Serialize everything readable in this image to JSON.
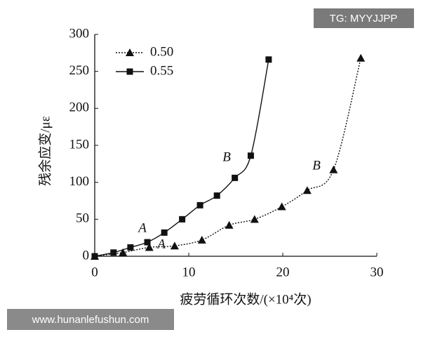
{
  "chart_data": {
    "type": "line",
    "xlabel": "疲劳循环次数/(×10⁴次)",
    "ylabel": "残余应变/με",
    "xlim": [
      0,
      30
    ],
    "xticks": [
      0,
      10,
      20,
      30
    ],
    "ylim": [
      0,
      300
    ],
    "yticks": [
      0,
      50,
      100,
      150,
      200,
      250,
      300
    ],
    "legend": "upper left",
    "annotations": [
      "A",
      "A",
      "B",
      "B"
    ],
    "series": [
      {
        "name": "0.50",
        "color": "#111111",
        "marker": "triangle",
        "line_style": "dotted",
        "x": [
          0,
          3.0,
          5.8,
          8.5,
          11.4,
          14.3,
          17.0,
          19.9,
          22.6,
          25.4,
          28.3
        ],
        "values": [
          0,
          5,
          12,
          14,
          22,
          42,
          50,
          67,
          89,
          117,
          268
        ]
      },
      {
        "name": "0.55",
        "color": "#111111",
        "marker": "square",
        "line_style": "solid",
        "x": [
          0,
          2.0,
          3.8,
          5.6,
          7.4,
          9.3,
          11.2,
          13.0,
          14.9,
          16.6,
          18.5
        ],
        "values": [
          0,
          5,
          12,
          19,
          32,
          50,
          69,
          82,
          106,
          136,
          266
        ]
      }
    ]
  },
  "watermarks": [
    "TG: MYYJJPP",
    "www.hunanlefushun.com"
  ]
}
